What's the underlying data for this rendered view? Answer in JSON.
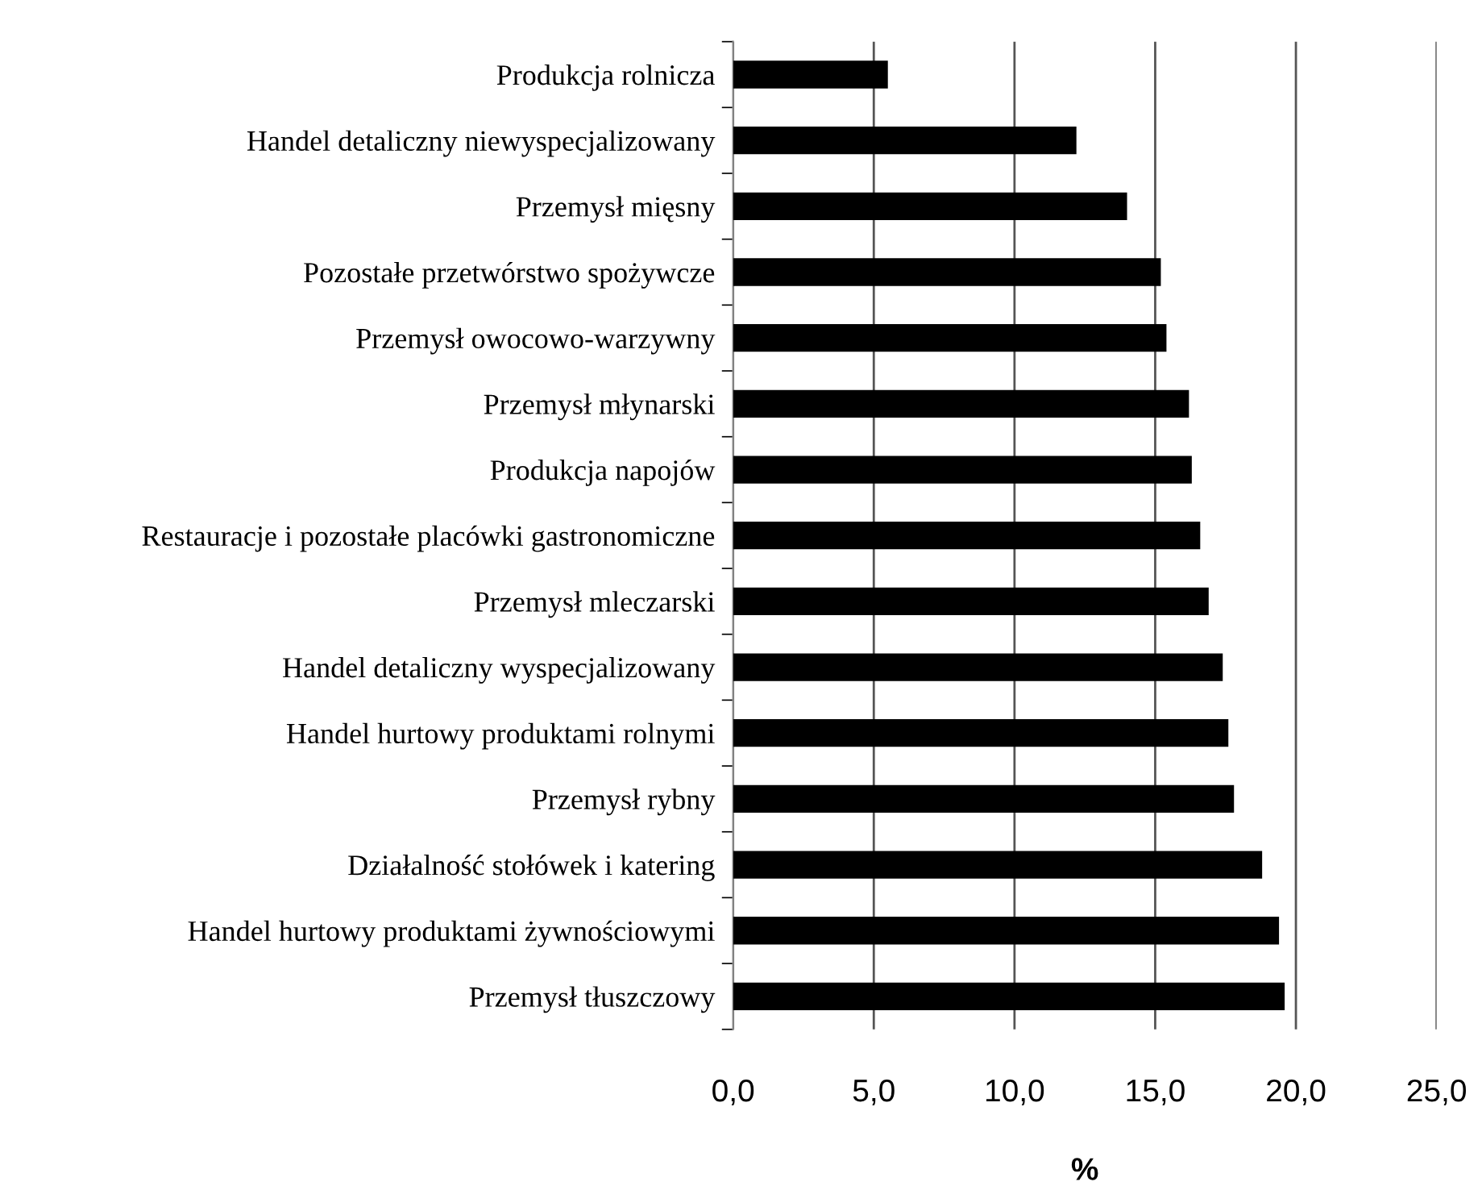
{
  "chart_data": {
    "type": "bar",
    "orientation": "horizontal",
    "xlabel": "%",
    "categories": [
      "Produkcja rolnicza",
      "Handel detaliczny niewyspecjalizowany",
      "Przemysł mięsny",
      "Pozostałe przetwórstwo spożywcze",
      "Przemysł owocowo-warzywny",
      "Przemysł młynarski",
      "Produkcja napojów",
      "Restauracje i pozostałe placówki gastronomiczne",
      "Przemysł mleczarski",
      "Handel detaliczny wyspecjalizowany",
      "Handel hurtowy produktami rolnymi",
      "Przemysł rybny",
      "Działalność stołówek i katering",
      "Handel hurtowy produktami żywnościowymi",
      "Przemysł tłuszczowy"
    ],
    "values": [
      5.5,
      12.2,
      14.0,
      15.2,
      15.4,
      16.2,
      16.3,
      16.6,
      16.9,
      17.4,
      17.6,
      17.8,
      18.8,
      19.4,
      19.6
    ],
    "color": "#000000",
    "xlim": [
      0,
      25
    ],
    "xticks": [
      {
        "value": 0,
        "label": "0,0"
      },
      {
        "value": 5,
        "label": "5,0"
      },
      {
        "value": 10,
        "label": "10,0"
      },
      {
        "value": 15,
        "label": "15,0"
      },
      {
        "value": 20,
        "label": "20,0"
      },
      {
        "value": 25,
        "label": "25,0"
      }
    ],
    "grid": "x",
    "legend": false
  }
}
